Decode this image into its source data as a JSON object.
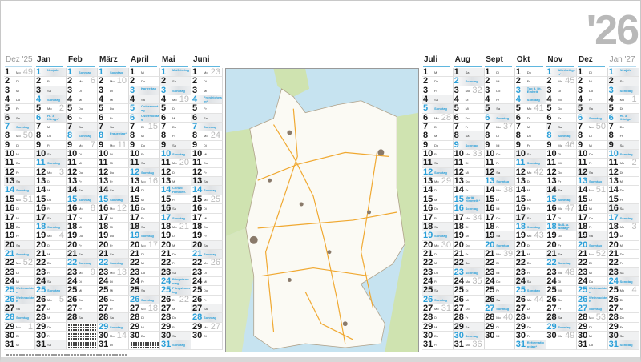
{
  "year_label": "'26",
  "weekday_abbr": [
    "Mo",
    "Di",
    "Mi",
    "Do",
    "Fr",
    "Sa"
  ],
  "sunday_label": "Sonntag",
  "colors": {
    "accent": "#2a9fd8",
    "week_number": "#bbbbbb",
    "map_sea": "#c6e3f0",
    "map_land": "#fbfaf4",
    "map_neighbor": "#cfe3b0",
    "roads": "#f0a830"
  },
  "left_months": [
    {
      "label": "Dez '25",
      "dim": true,
      "start": 0,
      "days": 31,
      "weeks": {
        "1": 49,
        "8": 50,
        "15": 51,
        "22": 52,
        "29": 1
      },
      "holidays": {
        "25": "Weihnachten",
        "26": "Weihnachten"
      }
    },
    {
      "label": "Jan",
      "start": 3,
      "days": 31,
      "weeks": {
        "5": 2,
        "12": 3,
        "19": 4,
        "26": 5
      },
      "holidays": {
        "1": "Neujahr",
        "6": "Hl. 3 Könige*"
      }
    },
    {
      "label": "Feb",
      "start": 6,
      "days": 28,
      "weeks": {
        "2": 6,
        "9": 7,
        "16": 8,
        "23": 9
      },
      "holidays": {}
    },
    {
      "label": "März",
      "start": 6,
      "days": 31,
      "weeks": {
        "2": 10,
        "9": 11,
        "16": 12,
        "23": 13,
        "30": 14
      },
      "holidays": {
        "8": "Frauentag*"
      }
    },
    {
      "label": "April",
      "start": 2,
      "days": 30,
      "weeks": {
        "6": 15,
        "13": 16,
        "20": 17,
        "27": 18
      },
      "holidays": {
        "3": "Karfreitag",
        "5": "Ostersonntag",
        "6": "Ostermontag"
      }
    },
    {
      "label": "Mai",
      "start": 4,
      "days": 31,
      "weeks": {
        "4": 19,
        "11": 20,
        "18": 21,
        "25": 22
      },
      "holidays": {
        "1": "Maifeiertag",
        "14": "Christi Himmelf.",
        "24": "Pfingstsonntag",
        "25": "Pfingstmontag"
      }
    },
    {
      "label": "Juni",
      "start": 0,
      "days": 30,
      "weeks": {
        "1": 23,
        "8": 24,
        "15": 25,
        "22": 26,
        "29": 27
      },
      "holidays": {
        "4": "Fronleichnam*"
      }
    }
  ],
  "right_months": [
    {
      "label": "Juli",
      "start": 2,
      "days": 31,
      "weeks": {
        "6": 28,
        "13": 29,
        "20": 30,
        "27": 31
      },
      "holidays": {}
    },
    {
      "label": "Aug",
      "start": 5,
      "days": 31,
      "weeks": {
        "3": 32,
        "10": 33,
        "17": 34,
        "24": 35,
        "31": 36
      },
      "holidays": {
        "15": "Mariä Himmelf.*"
      }
    },
    {
      "label": "Sept",
      "start": 1,
      "days": 30,
      "weeks": {
        "7": 37,
        "14": 38,
        "21": 39,
        "28": 40
      },
      "holidays": {}
    },
    {
      "label": "Okt",
      "start": 3,
      "days": 31,
      "weeks": {
        "5": 41,
        "12": 42,
        "19": 43,
        "26": 44
      },
      "holidays": {
        "3": "Tag d. Dt. Einheit",
        "31": "Reformationstag*"
      }
    },
    {
      "label": "Nov",
      "start": 6,
      "days": 30,
      "weeks": {
        "2": 45,
        "9": 46,
        "16": 47,
        "23": 48,
        "30": 49
      },
      "holidays": {
        "1": "Allerheiligen*",
        "18": "Buß- u. Bettag*"
      }
    },
    {
      "label": "Dez",
      "start": 1,
      "days": 31,
      "weeks": {
        "7": 50,
        "14": 51,
        "21": 52,
        "28": 53
      },
      "holidays": {
        "25": "Weihnachten",
        "26": "Weihnachten"
      }
    },
    {
      "label": "Jan '27",
      "dim": true,
      "start": 4,
      "days": 31,
      "weeks": {
        "4": 1,
        "11": 2,
        "18": 3,
        "25": 4
      },
      "holidays": {
        "1": "Neujahr",
        "6": "Hl. 3 Könige*"
      }
    }
  ]
}
